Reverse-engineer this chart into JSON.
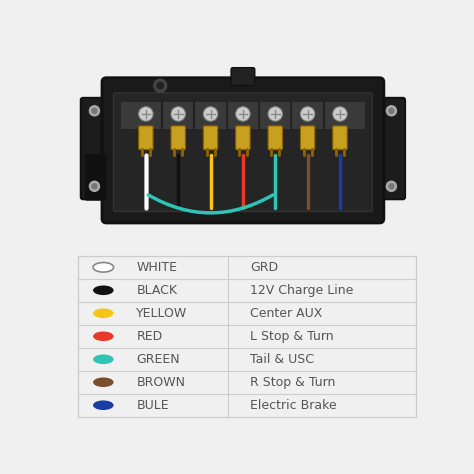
{
  "wiring_rows": [
    {
      "color_name": "WHITE",
      "dot_color": "#ffffff",
      "dot_edge": "#aaaaaa",
      "description": "GRD",
      "is_outline": true
    },
    {
      "color_name": "BLACK",
      "dot_color": "#111111",
      "dot_edge": "#111111",
      "description": "12V Charge Line",
      "is_outline": false
    },
    {
      "color_name": "YELLOW",
      "dot_color": "#f5c518",
      "dot_edge": "#f5c518",
      "description": "Center AUX",
      "is_outline": false
    },
    {
      "color_name": "RED",
      "dot_color": "#e8392a",
      "dot_edge": "#e8392a",
      "description": "L Stop & Turn",
      "is_outline": false
    },
    {
      "color_name": "GREEN",
      "dot_color": "#2ec4b6",
      "dot_edge": "#2ec4b6",
      "description": "Tail & USC",
      "is_outline": false
    },
    {
      "color_name": "BROWN",
      "dot_color": "#7b4f2e",
      "dot_edge": "#7b4f2e",
      "description": "R Stop & Turn",
      "is_outline": false
    },
    {
      "color_name": "BULE",
      "dot_color": "#1a3fa3",
      "dot_edge": "#1a3fa3",
      "description": "Electric Brake",
      "is_outline": false
    }
  ],
  "table_bg": "#ffffff",
  "table_line_color": "#cccccc",
  "text_color": "#555555",
  "font_size": 9,
  "box_bg": "#1a1a1a",
  "wire_colors": [
    "#ffffff",
    "#111111",
    "#f5c518",
    "#e8392a",
    "#2ec4b6",
    "#7b4f2e",
    "#1a3fa3"
  ],
  "terminal_color": "#c8a020",
  "screw_color": "#cccccc",
  "top_bg": "#f0f0f0",
  "bottom_bg": "#ffffff"
}
